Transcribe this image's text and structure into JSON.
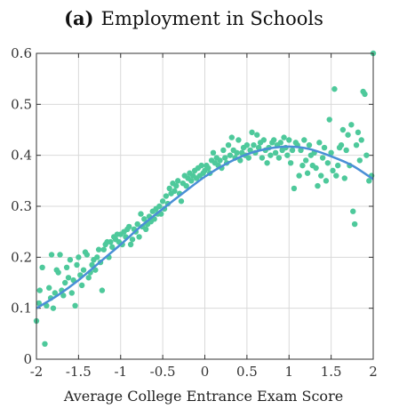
{
  "chart_data": {
    "type": "scatter",
    "title_bold": "(a)",
    "title": "Employment in Schools",
    "xlabel": "Average College Entrance Exam Score",
    "ylabel": "",
    "xlim": [
      -2,
      2
    ],
    "ylim": [
      0,
      0.6
    ],
    "x_ticks": [
      -2,
      -1.5,
      -1,
      -0.5,
      0,
      0.5,
      1,
      1.5,
      2
    ],
    "x_tick_labels": [
      "-2",
      "-1.5",
      "-1",
      "-0.5",
      "0",
      "0.5",
      "1",
      "1.5",
      "2"
    ],
    "y_ticks": [
      0,
      0.1,
      0.2,
      0.3,
      0.4,
      0.5,
      0.6
    ],
    "y_tick_labels": [
      "0",
      "0.1",
      "0.2",
      "0.3",
      "0.4",
      "0.5",
      "0.6"
    ],
    "grid": true,
    "colors": {
      "points": "#4ec99b",
      "fit": "#4a8fd6",
      "grid": "#d9d9d9",
      "axis": "#333333"
    },
    "fit_line": {
      "x": [
        -2,
        -1.75,
        -1.5,
        -1.25,
        -1,
        -0.75,
        -0.5,
        -0.25,
        0,
        0.25,
        0.5,
        0.75,
        1,
        1.25,
        1.5,
        1.75,
        2
      ],
      "y": [
        0.1,
        0.125,
        0.155,
        0.19,
        0.225,
        0.262,
        0.295,
        0.327,
        0.358,
        0.383,
        0.402,
        0.413,
        0.417,
        0.412,
        0.398,
        0.38,
        0.353
      ]
    },
    "points": [
      [
        -2.0,
        0.075
      ],
      [
        -1.97,
        0.11
      ],
      [
        -1.96,
        0.135
      ],
      [
        -1.93,
        0.18
      ],
      [
        -1.9,
        0.03
      ],
      [
        -1.88,
        0.105
      ],
      [
        -1.85,
        0.14
      ],
      [
        -1.83,
        0.12
      ],
      [
        -1.82,
        0.205
      ],
      [
        -1.8,
        0.1
      ],
      [
        -1.78,
        0.13
      ],
      [
        -1.76,
        0.175
      ],
      [
        -1.74,
        0.17
      ],
      [
        -1.72,
        0.205
      ],
      [
        -1.7,
        0.135
      ],
      [
        -1.68,
        0.125
      ],
      [
        -1.66,
        0.15
      ],
      [
        -1.64,
        0.18
      ],
      [
        -1.62,
        0.16
      ],
      [
        -1.6,
        0.195
      ],
      [
        -1.58,
        0.13
      ],
      [
        -1.56,
        0.155
      ],
      [
        -1.54,
        0.105
      ],
      [
        -1.52,
        0.185
      ],
      [
        -1.5,
        0.2
      ],
      [
        -1.48,
        0.165
      ],
      [
        -1.46,
        0.145
      ],
      [
        -1.44,
        0.175
      ],
      [
        -1.42,
        0.21
      ],
      [
        -1.4,
        0.205
      ],
      [
        -1.38,
        0.16
      ],
      [
        -1.36,
        0.17
      ],
      [
        -1.34,
        0.185
      ],
      [
        -1.32,
        0.195
      ],
      [
        -1.3,
        0.175
      ],
      [
        -1.28,
        0.2
      ],
      [
        -1.26,
        0.215
      ],
      [
        -1.24,
        0.19
      ],
      [
        -1.22,
        0.135
      ],
      [
        -1.2,
        0.215
      ],
      [
        -1.18,
        0.225
      ],
      [
        -1.16,
        0.23
      ],
      [
        -1.14,
        0.2
      ],
      [
        -1.12,
        0.23
      ],
      [
        -1.1,
        0.22
      ],
      [
        -1.08,
        0.24
      ],
      [
        -1.06,
        0.235
      ],
      [
        -1.04,
        0.245
      ],
      [
        -1.02,
        0.23
      ],
      [
        -1.0,
        0.245
      ],
      [
        -0.98,
        0.225
      ],
      [
        -0.96,
        0.25
      ],
      [
        -0.94,
        0.24
      ],
      [
        -0.92,
        0.255
      ],
      [
        -0.9,
        0.26
      ],
      [
        -0.88,
        0.225
      ],
      [
        -0.86,
        0.235
      ],
      [
        -0.84,
        0.255
      ],
      [
        -0.82,
        0.25
      ],
      [
        -0.8,
        0.265
      ],
      [
        -0.78,
        0.24
      ],
      [
        -0.76,
        0.285
      ],
      [
        -0.74,
        0.26
      ],
      [
        -0.72,
        0.275
      ],
      [
        -0.7,
        0.255
      ],
      [
        -0.68,
        0.265
      ],
      [
        -0.66,
        0.28
      ],
      [
        -0.64,
        0.27
      ],
      [
        -0.62,
        0.29
      ],
      [
        -0.6,
        0.275
      ],
      [
        -0.58,
        0.295
      ],
      [
        -0.56,
        0.285
      ],
      [
        -0.54,
        0.3
      ],
      [
        -0.52,
        0.285
      ],
      [
        -0.5,
        0.31
      ],
      [
        -0.48,
        0.295
      ],
      [
        -0.46,
        0.32
      ],
      [
        -0.44,
        0.305
      ],
      [
        -0.42,
        0.335
      ],
      [
        -0.4,
        0.325
      ],
      [
        -0.38,
        0.345
      ],
      [
        -0.36,
        0.33
      ],
      [
        -0.34,
        0.34
      ],
      [
        -0.32,
        0.35
      ],
      [
        -0.3,
        0.325
      ],
      [
        -0.28,
        0.31
      ],
      [
        -0.26,
        0.345
      ],
      [
        -0.24,
        0.36
      ],
      [
        -0.22,
        0.34
      ],
      [
        -0.2,
        0.355
      ],
      [
        -0.18,
        0.365
      ],
      [
        -0.16,
        0.35
      ],
      [
        -0.14,
        0.36
      ],
      [
        -0.12,
        0.37
      ],
      [
        -0.1,
        0.355
      ],
      [
        -0.08,
        0.375
      ],
      [
        -0.06,
        0.36
      ],
      [
        -0.04,
        0.38
      ],
      [
        -0.02,
        0.365
      ],
      [
        0.0,
        0.37
      ],
      [
        0.02,
        0.38
      ],
      [
        0.04,
        0.375
      ],
      [
        0.06,
        0.365
      ],
      [
        0.08,
        0.39
      ],
      [
        0.1,
        0.405
      ],
      [
        0.12,
        0.385
      ],
      [
        0.14,
        0.395
      ],
      [
        0.16,
        0.38
      ],
      [
        0.18,
        0.39
      ],
      [
        0.2,
        0.375
      ],
      [
        0.22,
        0.41
      ],
      [
        0.24,
        0.395
      ],
      [
        0.26,
        0.385
      ],
      [
        0.28,
        0.42
      ],
      [
        0.3,
        0.4
      ],
      [
        0.32,
        0.435
      ],
      [
        0.34,
        0.41
      ],
      [
        0.36,
        0.395
      ],
      [
        0.38,
        0.405
      ],
      [
        0.4,
        0.43
      ],
      [
        0.42,
        0.39
      ],
      [
        0.44,
        0.405
      ],
      [
        0.46,
        0.415
      ],
      [
        0.48,
        0.4
      ],
      [
        0.5,
        0.42
      ],
      [
        0.52,
        0.395
      ],
      [
        0.54,
        0.41
      ],
      [
        0.56,
        0.445
      ],
      [
        0.58,
        0.42
      ],
      [
        0.6,
        0.405
      ],
      [
        0.62,
        0.44
      ],
      [
        0.64,
        0.415
      ],
      [
        0.66,
        0.425
      ],
      [
        0.68,
        0.395
      ],
      [
        0.7,
        0.43
      ],
      [
        0.72,
        0.41
      ],
      [
        0.74,
        0.385
      ],
      [
        0.76,
        0.415
      ],
      [
        0.78,
        0.4
      ],
      [
        0.8,
        0.425
      ],
      [
        0.82,
        0.43
      ],
      [
        0.84,
        0.405
      ],
      [
        0.86,
        0.42
      ],
      [
        0.88,
        0.395
      ],
      [
        0.9,
        0.425
      ],
      [
        0.92,
        0.41
      ],
      [
        0.94,
        0.435
      ],
      [
        0.96,
        0.415
      ],
      [
        0.98,
        0.4
      ],
      [
        1.0,
        0.43
      ],
      [
        1.02,
        0.385
      ],
      [
        1.04,
        0.41
      ],
      [
        1.06,
        0.335
      ],
      [
        1.08,
        0.425
      ],
      [
        1.1,
        0.42
      ],
      [
        1.12,
        0.36
      ],
      [
        1.14,
        0.41
      ],
      [
        1.16,
        0.38
      ],
      [
        1.18,
        0.43
      ],
      [
        1.2,
        0.39
      ],
      [
        1.22,
        0.365
      ],
      [
        1.24,
        0.42
      ],
      [
        1.26,
        0.4
      ],
      [
        1.28,
        0.38
      ],
      [
        1.3,
        0.405
      ],
      [
        1.32,
        0.375
      ],
      [
        1.34,
        0.34
      ],
      [
        1.36,
        0.425
      ],
      [
        1.38,
        0.36
      ],
      [
        1.4,
        0.395
      ],
      [
        1.42,
        0.415
      ],
      [
        1.44,
        0.35
      ],
      [
        1.46,
        0.385
      ],
      [
        1.48,
        0.47
      ],
      [
        1.5,
        0.405
      ],
      [
        1.52,
        0.37
      ],
      [
        1.54,
        0.53
      ],
      [
        1.56,
        0.36
      ],
      [
        1.58,
        0.38
      ],
      [
        1.6,
        0.415
      ],
      [
        1.62,
        0.42
      ],
      [
        1.64,
        0.45
      ],
      [
        1.66,
        0.355
      ],
      [
        1.68,
        0.41
      ],
      [
        1.7,
        0.44
      ],
      [
        1.72,
        0.38
      ],
      [
        1.74,
        0.46
      ],
      [
        1.76,
        0.29
      ],
      [
        1.78,
        0.265
      ],
      [
        1.8,
        0.42
      ],
      [
        1.82,
        0.445
      ],
      [
        1.84,
        0.39
      ],
      [
        1.86,
        0.43
      ],
      [
        1.88,
        0.525
      ],
      [
        1.9,
        0.52
      ],
      [
        1.92,
        0.4
      ],
      [
        1.95,
        0.35
      ],
      [
        1.98,
        0.36
      ],
      [
        2.0,
        0.6
      ]
    ]
  }
}
